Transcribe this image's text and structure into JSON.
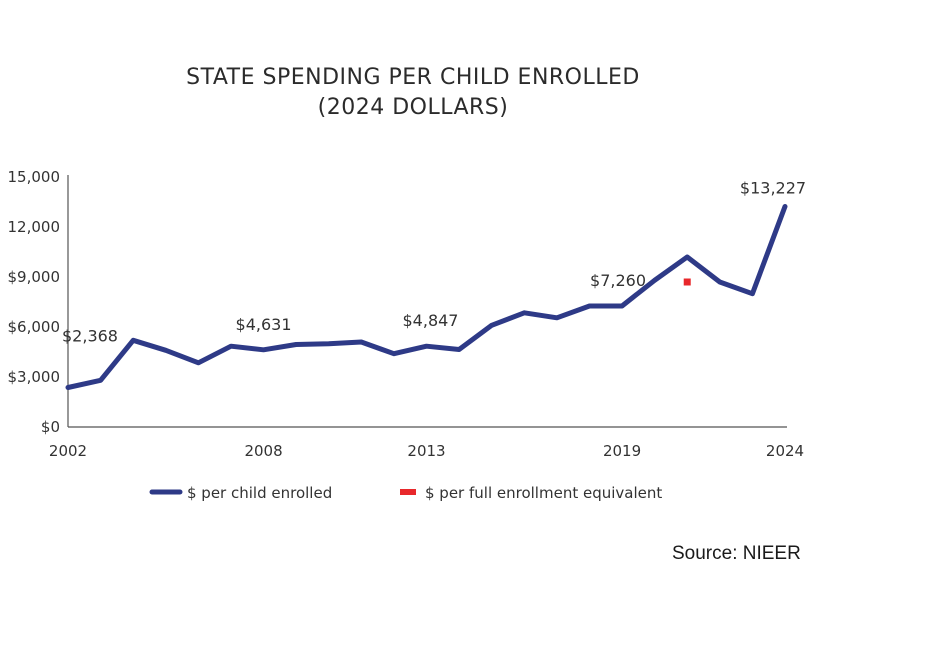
{
  "chart_data": {
    "type": "line",
    "title": "STATE SPENDING PER CHILD ENROLLED",
    "subtitle": "(2024 DOLLARS)",
    "xlabel": "",
    "ylabel": "",
    "x_ticks": [
      "2002",
      "2008",
      "2013",
      "2019",
      "2024"
    ],
    "y_ticks": [
      "$0",
      "$3,000",
      "$6,000",
      "$9,000",
      "12,000",
      "15,000"
    ],
    "xlim": [
      2002,
      2024
    ],
    "ylim": [
      0,
      15000
    ],
    "grid": false,
    "legend_position": "bottom",
    "series": [
      {
        "name": "$ per child enrolled",
        "color": "#2e3a87",
        "x": [
          2002,
          2003,
          2004,
          2005,
          2006,
          2007,
          2008,
          2009,
          2010,
          2011,
          2012,
          2013,
          2014,
          2015,
          2016,
          2017,
          2018,
          2019,
          2020,
          2021,
          2022,
          2023,
          2024
        ],
        "values": [
          2368,
          2800,
          5200,
          4600,
          3850,
          4850,
          4631,
          4950,
          5000,
          5100,
          4400,
          4847,
          4650,
          6100,
          6850,
          6550,
          7260,
          7260,
          8800,
          10200,
          8700,
          8000,
          13227
        ]
      },
      {
        "name": "$ per full enrollment equivalent",
        "color": "#e8282b",
        "x": [
          2021
        ],
        "values": [
          8700
        ]
      }
    ],
    "data_labels": [
      {
        "x": 2002,
        "text": "$2,368"
      },
      {
        "x": 2008,
        "text": "$4,631"
      },
      {
        "x": 2013,
        "text": "$4,847"
      },
      {
        "x": 2019,
        "text": "$7,260"
      },
      {
        "x": 2024,
        "text": "$13,227"
      }
    ]
  },
  "source": "Source: NIEER"
}
